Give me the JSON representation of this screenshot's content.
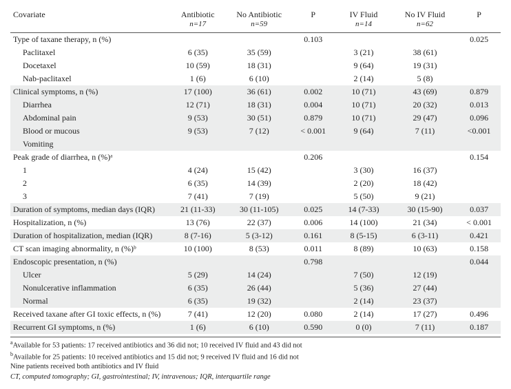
{
  "columns": {
    "covariate": "Covariate",
    "antibiotic": "Antibiotic",
    "antibiotic_n": "n=17",
    "no_antibiotic": "No Antibiotic",
    "no_antibiotic_n": "n=59",
    "p1": "P",
    "iv_fluid": "IV Fluid",
    "iv_fluid_n": "n=14",
    "no_iv_fluid": "No IV Fluid",
    "no_iv_fluid_n": "n=62",
    "p2": "P"
  },
  "sections": [
    {
      "label": "Type of taxane therapy, n (%)",
      "p1": "0.103",
      "p2": "0.025",
      "rows": [
        {
          "label": "Paclitaxel",
          "a": "6 (35)",
          "b": "35 (59)",
          "c": "3 (21)",
          "d": "38 (61)"
        },
        {
          "label": "Docetaxel",
          "a": "10 (59)",
          "b": "18 (31)",
          "c": "9 (64)",
          "d": "19 (31)"
        },
        {
          "label": "Nab-paclitaxel",
          "a": "1 (6)",
          "b": "6 (10)",
          "c": "2 (14)",
          "d": "5 (8)"
        }
      ]
    },
    {
      "shade": true,
      "label": "Clinical symptoms, n (%)",
      "a": "17 (100)",
      "b": "36 (61)",
      "p1": "0.002",
      "c": "10 (71)",
      "d": "43 (69)",
      "p2": "0.879",
      "rows": [
        {
          "label": "Diarrhea",
          "a": "12 (71)",
          "b": "18 (31)",
          "p1": "0.004",
          "c": "10 (71)",
          "d": "20 (32)",
          "p2": "0.013"
        },
        {
          "label": "Abdominal pain",
          "a": "9 (53)",
          "b": "30 (51)",
          "p1": "0.879",
          "c": "10 (71)",
          "d": "29 (47)",
          "p2": "0.096"
        },
        {
          "label": "Blood or mucous",
          "a": "9 (53)",
          "b": "7 (12)",
          "p1": "< 0.001",
          "c": "9 (64)",
          "d": "7 (11)",
          "p2": "<0.001"
        },
        {
          "label": "Vomiting"
        }
      ]
    },
    {
      "label": "Peak grade of diarrhea, n (%)ᵃ",
      "p1": "0.206",
      "p2": "0.154",
      "rows": [
        {
          "label": "1",
          "a": "4 (24)",
          "b": "15 (42)",
          "c": "3 (30)",
          "d": "16 (37)"
        },
        {
          "label": "2",
          "a": "6 (35)",
          "b": "14 (39)",
          "c": "2 (20)",
          "d": "18 (42)"
        },
        {
          "label": "3",
          "a": "7 (41)",
          "b": "7 (19)",
          "c": "5 (50)",
          "d": "9 (21)"
        }
      ]
    },
    {
      "shade": true,
      "single": true,
      "label": "Duration of symptoms, median days (IQR)",
      "a": "21 (11-33)",
      "b": "30 (11-105)",
      "p1": "0.025",
      "c": "14 (7-33)",
      "d": "30 (15-90)",
      "p2": "0.037"
    },
    {
      "single": true,
      "label": "Hospitalization, n (%)",
      "a": "13 (76)",
      "b": "22 (37)",
      "p1": "0.006",
      "c": "14 (100)",
      "d": "21 (34)",
      "p2": "< 0.001"
    },
    {
      "shade": true,
      "single": true,
      "label": "Duration of hospitalization, median (IQR)",
      "a": "8 (7-16)",
      "b": "5 (3-12)",
      "p1": "0.161",
      "c": "8 (5-15)",
      "d": "6 (3-11)",
      "p2": "0.421"
    },
    {
      "single": true,
      "label": "CT scan imaging abnormality, n (%)ᵇ",
      "a": "10 (100)",
      "b": "8 (53)",
      "p1": "0.011",
      "c": "8 (89)",
      "d": "10 (63)",
      "p2": "0.158"
    },
    {
      "shade": true,
      "label": "Endoscopic presentation, n (%)",
      "p1": "0.798",
      "p2": "0.044",
      "rows": [
        {
          "label": "Ulcer",
          "a": "5 (29)",
          "b": "14 (24)",
          "c": "7 (50)",
          "d": "12 (19)"
        },
        {
          "label": "Nonulcerative inflammation",
          "a": "6 (35)",
          "b": "26 (44)",
          "c": "5 (36)",
          "d": "27 (44)"
        },
        {
          "label": "Normal",
          "a": "6 (35)",
          "b": "19 (32)",
          "c": "2 (14)",
          "d": "23 (37)"
        }
      ]
    },
    {
      "single": true,
      "label": "Received taxane after GI toxic effects, n (%)",
      "a": "7 (41)",
      "b": "12 (20)",
      "p1": "0.080",
      "c": "2 (14)",
      "d": "17 (27)",
      "p2": "0.496"
    },
    {
      "shade": true,
      "single": true,
      "label": "Recurrent GI symptoms, n (%)",
      "a": "1 (6)",
      "b": "6 (10)",
      "p1": "0.590",
      "c": "0 (0)",
      "d": "7 (11)",
      "p2": "0.187"
    }
  ],
  "footnotes": {
    "a": "Available for 53 patients: 17 received antibiotics and 36 did not; 10 received IV fluid and 43 did not",
    "b": "Available for 25 patients: 10 received antibiotics and 15 did not; 9 received IV fluid and 16 did not",
    "line3": "Nine patients received both antibiotics and IV fluid",
    "abbrev": "CT, computed tomography; GI, gastrointestinal; IV, intravenous; IQR, interquartile range"
  }
}
